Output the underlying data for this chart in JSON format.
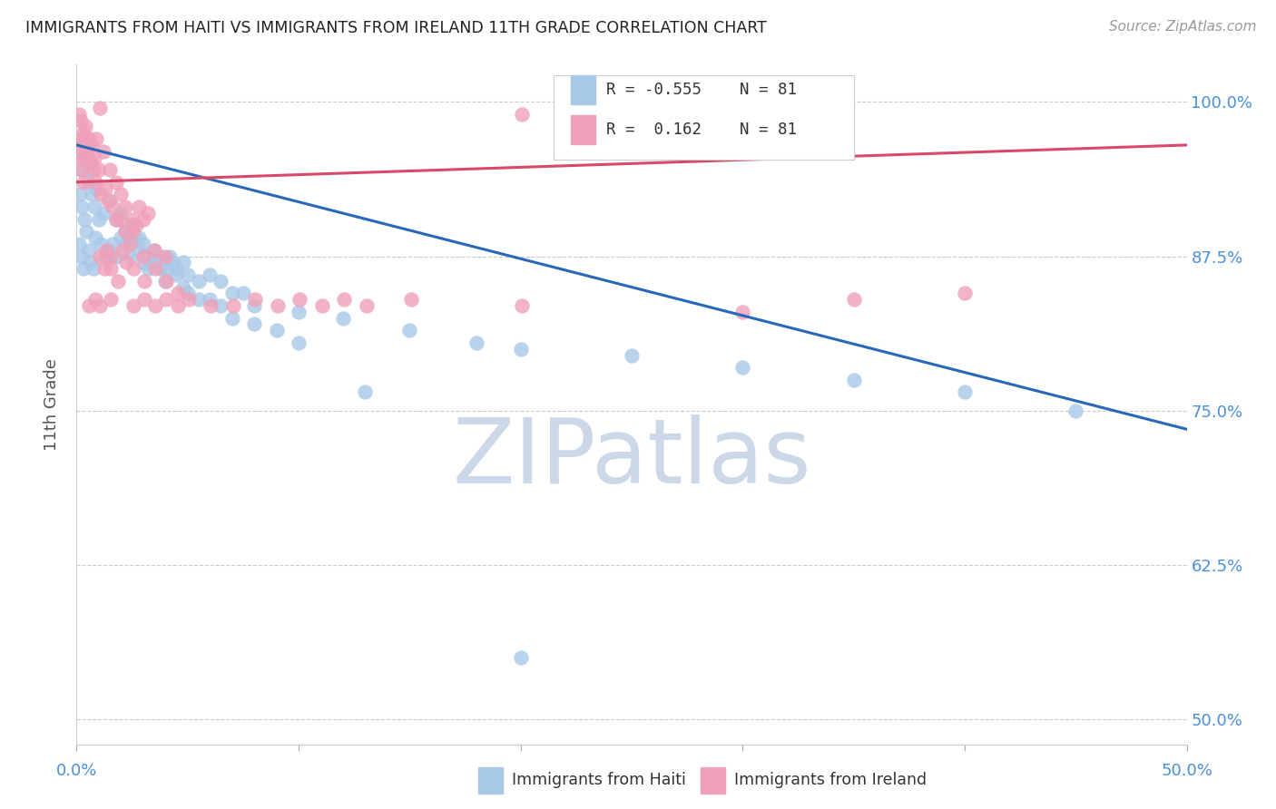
{
  "title": "IMMIGRANTS FROM HAITI VS IMMIGRANTS FROM IRELAND 11TH GRADE CORRELATION CHART",
  "source": "Source: ZipAtlas.com",
  "ylabel": "11th Grade",
  "xlim": [
    0.0,
    50.0
  ],
  "ylim": [
    48.0,
    103.0
  ],
  "x_ticks": [
    0.0,
    10.0,
    20.0,
    30.0,
    40.0,
    50.0
  ],
  "x_tick_labels": [
    "0.0%",
    "",
    "",
    "",
    "",
    "50.0%"
  ],
  "y_ticks": [
    50.0,
    62.5,
    75.0,
    87.5,
    100.0
  ],
  "y_tick_labels": [
    "50.0%",
    "62.5%",
    "75.0%",
    "87.5%",
    "100.0%"
  ],
  "R_haiti": -0.555,
  "N_haiti": 81,
  "R_ireland": 0.162,
  "N_ireland": 81,
  "haiti_color": "#a8c8e8",
  "ireland_color": "#f0a0b8",
  "haiti_line_color": "#2868b8",
  "ireland_line_color": "#d84868",
  "haiti_scatter": [
    [
      0.1,
      96.0
    ],
    [
      0.2,
      94.5
    ],
    [
      0.3,
      97.0
    ],
    [
      0.15,
      92.5
    ],
    [
      0.4,
      95.5
    ],
    [
      0.25,
      91.5
    ],
    [
      0.5,
      93.5
    ],
    [
      0.35,
      90.5
    ],
    [
      0.6,
      94.5
    ],
    [
      0.12,
      88.5
    ],
    [
      0.7,
      92.5
    ],
    [
      0.45,
      89.5
    ],
    [
      0.8,
      91.5
    ],
    [
      0.22,
      87.5
    ],
    [
      0.9,
      93.0
    ],
    [
      0.55,
      88.0
    ],
    [
      1.0,
      90.5
    ],
    [
      0.32,
      86.5
    ],
    [
      1.2,
      91.0
    ],
    [
      0.65,
      87.0
    ],
    [
      1.5,
      92.0
    ],
    [
      0.75,
      86.5
    ],
    [
      1.8,
      90.5
    ],
    [
      0.85,
      89.0
    ],
    [
      2.0,
      91.0
    ],
    [
      1.1,
      88.5
    ],
    [
      2.2,
      89.5
    ],
    [
      1.3,
      87.5
    ],
    [
      2.5,
      90.0
    ],
    [
      1.4,
      88.0
    ],
    [
      2.8,
      89.0
    ],
    [
      1.6,
      88.5
    ],
    [
      3.0,
      88.5
    ],
    [
      1.8,
      87.5
    ],
    [
      3.2,
      87.5
    ],
    [
      2.0,
      89.0
    ],
    [
      3.5,
      88.0
    ],
    [
      2.2,
      88.5
    ],
    [
      3.8,
      87.5
    ],
    [
      2.4,
      87.5
    ],
    [
      4.0,
      86.5
    ],
    [
      2.6,
      89.0
    ],
    [
      4.2,
      87.5
    ],
    [
      2.8,
      88.0
    ],
    [
      4.5,
      86.5
    ],
    [
      3.0,
      87.0
    ],
    [
      4.8,
      87.0
    ],
    [
      3.2,
      86.5
    ],
    [
      5.0,
      86.0
    ],
    [
      3.5,
      87.0
    ],
    [
      5.5,
      85.5
    ],
    [
      3.8,
      86.5
    ],
    [
      6.0,
      86.0
    ],
    [
      4.0,
      85.5
    ],
    [
      6.5,
      85.5
    ],
    [
      4.3,
      87.0
    ],
    [
      7.0,
      84.5
    ],
    [
      4.5,
      86.0
    ],
    [
      7.5,
      84.5
    ],
    [
      4.8,
      85.0
    ],
    [
      8.0,
      83.5
    ],
    [
      5.0,
      84.5
    ],
    [
      10.0,
      83.0
    ],
    [
      5.5,
      84.0
    ],
    [
      12.0,
      82.5
    ],
    [
      6.0,
      84.0
    ],
    [
      15.0,
      81.5
    ],
    [
      6.5,
      83.5
    ],
    [
      18.0,
      80.5
    ],
    [
      7.0,
      82.5
    ],
    [
      20.0,
      80.0
    ],
    [
      8.0,
      82.0
    ],
    [
      25.0,
      79.5
    ],
    [
      9.0,
      81.5
    ],
    [
      30.0,
      78.5
    ],
    [
      10.0,
      80.5
    ],
    [
      35.0,
      77.5
    ],
    [
      40.0,
      76.5
    ],
    [
      45.0,
      75.0
    ],
    [
      13.0,
      76.5
    ],
    [
      20.0,
      55.0
    ]
  ],
  "ireland_scatter": [
    [
      0.1,
      99.0
    ],
    [
      0.2,
      98.5
    ],
    [
      0.3,
      97.5
    ],
    [
      0.15,
      96.5
    ],
    [
      0.4,
      98.0
    ],
    [
      0.25,
      97.0
    ],
    [
      0.5,
      96.5
    ],
    [
      0.35,
      95.5
    ],
    [
      0.6,
      97.0
    ],
    [
      0.12,
      95.5
    ],
    [
      0.7,
      96.5
    ],
    [
      0.45,
      96.0
    ],
    [
      0.8,
      95.5
    ],
    [
      0.22,
      94.5
    ],
    [
      0.9,
      97.0
    ],
    [
      0.55,
      95.5
    ],
    [
      1.0,
      94.5
    ],
    [
      0.32,
      93.5
    ],
    [
      1.2,
      96.0
    ],
    [
      0.65,
      95.0
    ],
    [
      1.5,
      94.5
    ],
    [
      0.75,
      94.5
    ],
    [
      1.8,
      93.5
    ],
    [
      0.85,
      93.5
    ],
    [
      2.0,
      92.5
    ],
    [
      1.1,
      92.5
    ],
    [
      2.2,
      91.5
    ],
    [
      1.3,
      93.0
    ],
    [
      2.5,
      90.5
    ],
    [
      1.4,
      92.0
    ],
    [
      2.8,
      91.5
    ],
    [
      1.6,
      91.5
    ],
    [
      3.0,
      90.5
    ],
    [
      1.8,
      90.5
    ],
    [
      3.2,
      91.0
    ],
    [
      2.0,
      90.5
    ],
    [
      2.2,
      89.5
    ],
    [
      2.4,
      88.5
    ],
    [
      2.5,
      89.5
    ],
    [
      2.7,
      90.0
    ],
    [
      1.05,
      87.5
    ],
    [
      1.35,
      88.0
    ],
    [
      3.0,
      87.5
    ],
    [
      1.25,
      86.5
    ],
    [
      3.5,
      88.0
    ],
    [
      1.55,
      87.5
    ],
    [
      4.0,
      87.5
    ],
    [
      2.05,
      88.0
    ],
    [
      1.55,
      86.5
    ],
    [
      1.85,
      85.5
    ],
    [
      2.25,
      87.0
    ],
    [
      2.55,
      86.5
    ],
    [
      3.05,
      85.5
    ],
    [
      3.55,
      86.5
    ],
    [
      4.05,
      85.5
    ],
    [
      4.55,
      84.5
    ],
    [
      0.55,
      83.5
    ],
    [
      0.85,
      84.0
    ],
    [
      1.05,
      83.5
    ],
    [
      1.55,
      84.0
    ],
    [
      2.55,
      83.5
    ],
    [
      3.05,
      84.0
    ],
    [
      3.55,
      83.5
    ],
    [
      4.05,
      84.0
    ],
    [
      4.55,
      83.5
    ],
    [
      5.05,
      84.0
    ],
    [
      6.05,
      83.5
    ],
    [
      7.05,
      83.5
    ],
    [
      8.05,
      84.0
    ],
    [
      9.05,
      83.5
    ],
    [
      10.05,
      84.0
    ],
    [
      11.05,
      83.5
    ],
    [
      12.05,
      84.0
    ],
    [
      13.05,
      83.5
    ],
    [
      15.05,
      84.0
    ],
    [
      20.05,
      83.5
    ],
    [
      1.05,
      99.5
    ],
    [
      20.05,
      99.0
    ],
    [
      30.0,
      83.0
    ],
    [
      35.0,
      84.0
    ],
    [
      40.0,
      84.5
    ]
  ],
  "haiti_trendline": [
    [
      0.0,
      96.5
    ],
    [
      50.0,
      73.5
    ]
  ],
  "ireland_trendline": [
    [
      0.0,
      93.5
    ],
    [
      50.0,
      96.5
    ]
  ],
  "watermark_text": "ZIPatlas",
  "watermark_color": "#ccd8e8",
  "background_color": "#ffffff",
  "grid_color": "#cccccc",
  "title_color": "#222222",
  "source_color": "#999999",
  "axis_tick_color": "#4a90d9",
  "ylabel_color": "#555555",
  "legend_text_color": "#333333",
  "legend_N_color": "#4a90d9",
  "bottom_legend_items": [
    {
      "label": "Immigrants from Haiti",
      "color": "#a8c8e8"
    },
    {
      "label": "Immigrants from Ireland",
      "color": "#f0a0b8"
    }
  ]
}
